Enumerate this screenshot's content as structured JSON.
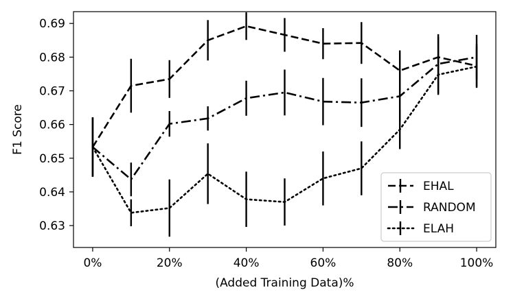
{
  "chart_data": {
    "type": "line",
    "title": "",
    "xlabel": "(Added Training Data)%",
    "ylabel": "F1 Score",
    "x": [
      0,
      10,
      20,
      30,
      40,
      50,
      60,
      70,
      80,
      90,
      100
    ],
    "x_ticks": [
      0,
      20,
      40,
      60,
      80,
      100
    ],
    "x_tick_labels": [
      "0%",
      "20%",
      "40%",
      "60%",
      "80%",
      "100%"
    ],
    "xlim": [
      -5,
      105
    ],
    "y_ticks": [
      0.63,
      0.64,
      0.65,
      0.66,
      0.67,
      0.68,
      0.69
    ],
    "y_tick_labels": [
      "0.63",
      "0.64",
      "0.65",
      "0.66",
      "0.67",
      "0.68",
      "0.69"
    ],
    "ylim": [
      0.6235,
      0.6935
    ],
    "grid": false,
    "legend_position": "lower-right",
    "series": [
      {
        "name": "EHAL",
        "style": "dashed",
        "values": [
          0.6533,
          0.6715,
          0.6735,
          0.685,
          0.6892,
          0.6866,
          0.684,
          0.6842,
          0.676,
          0.68,
          0.6774
        ],
        "errors": [
          0.0088,
          0.008,
          0.0056,
          0.006,
          0.0041,
          0.005,
          0.0046,
          0.0062,
          0.006,
          0.006,
          0.0065
        ]
      },
      {
        "name": "RANDOM",
        "style": "dashdot",
        "values": [
          0.6533,
          0.6437,
          0.6602,
          0.6618,
          0.6678,
          0.6695,
          0.6668,
          0.6665,
          0.6684,
          0.678,
          0.68
        ],
        "errors": [
          0.0088,
          0.005,
          0.0038,
          0.0036,
          0.0052,
          0.0068,
          0.007,
          0.0072,
          0.0076,
          0.0088,
          0.0066
        ]
      },
      {
        "name": "ELAH",
        "style": "dotted",
        "values": [
          0.6533,
          0.6338,
          0.6352,
          0.6454,
          0.6378,
          0.637,
          0.644,
          0.647,
          0.6585,
          0.6748,
          0.6772
        ],
        "errors": [
          0.0088,
          0.004,
          0.0085,
          0.009,
          0.0082,
          0.007,
          0.008,
          0.008,
          0.0058,
          0.006,
          0.006
        ]
      }
    ],
    "colors": {
      "line": "#000000",
      "axis": "#000000",
      "background": "#ffffff",
      "legend_border": "#cccccc"
    }
  }
}
